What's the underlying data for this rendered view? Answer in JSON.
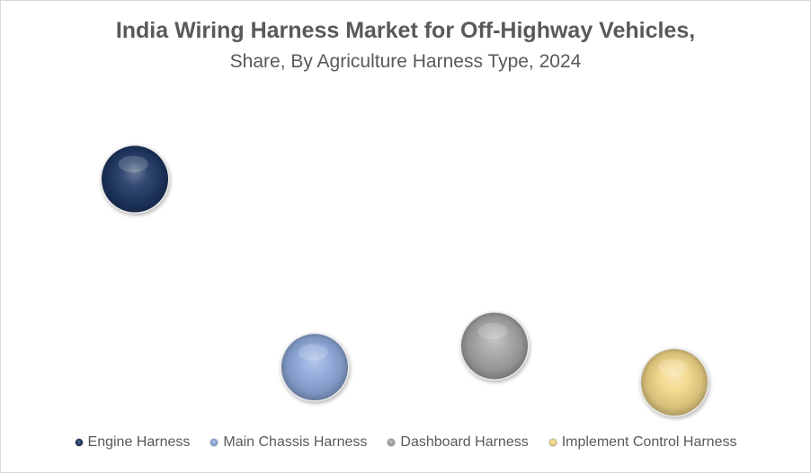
{
  "chart_data": {
    "type": "bubble",
    "title": "India Wiring Harness Market for Off-Highway Vehicles,",
    "subtitle": "Share, By Agriculture Harness Type, 2024",
    "legend_position": "bottom",
    "grid": false,
    "axes_visible": false,
    "series": [
      {
        "name": "Engine Harness",
        "x": 1,
        "y": 0.75,
        "size": 1,
        "color": "#1f3864"
      },
      {
        "name": "Main Chassis Harness",
        "x": 2,
        "y": 0.13,
        "size": 1,
        "color": "#8faadc"
      },
      {
        "name": "Dashboard Harness",
        "x": 3,
        "y": 0.2,
        "size": 1,
        "color": "#a6a6a6"
      },
      {
        "name": "Implement Control Harness",
        "x": 4,
        "y": 0.08,
        "size": 1,
        "color": "#f4d98a"
      }
    ],
    "xlim": [
      0.4,
      4.65
    ],
    "ylim": [
      -0.05,
      1.0
    ]
  }
}
